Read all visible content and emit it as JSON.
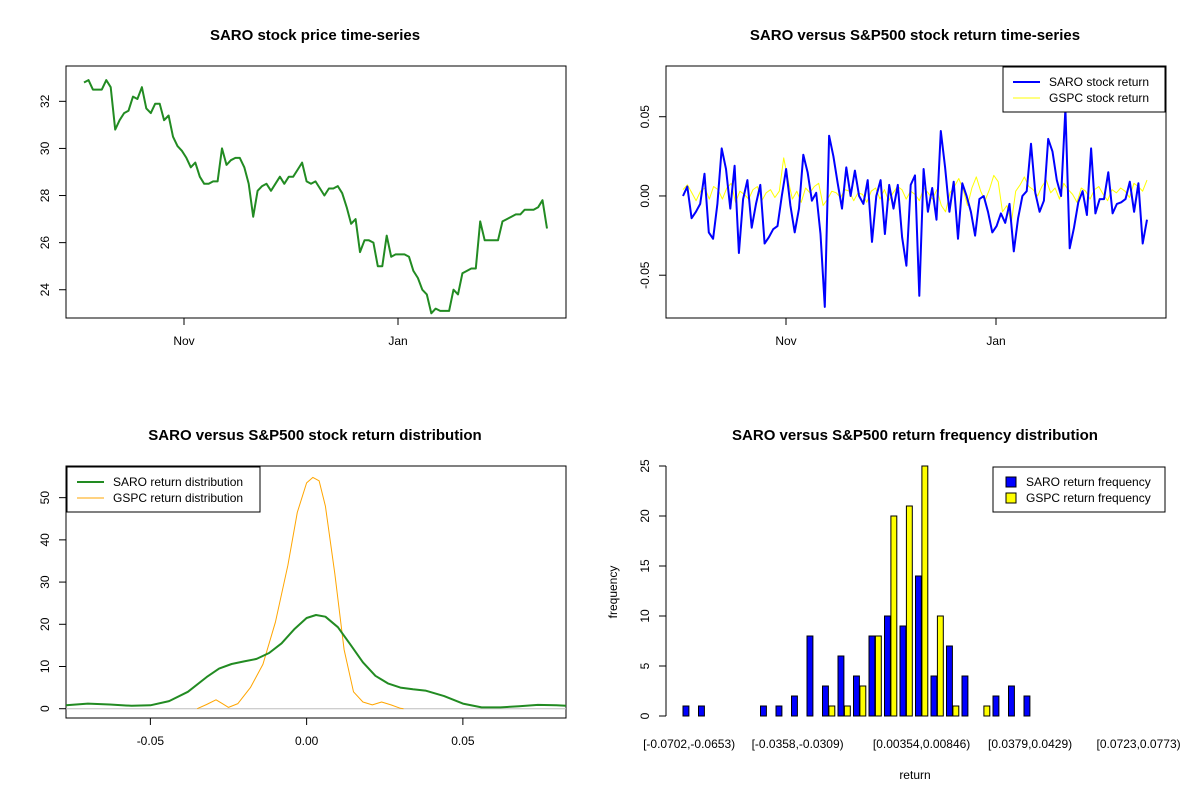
{
  "chart_data": [
    {
      "type": "line",
      "title": "SARO stock price time-series",
      "x_tick_labels": [
        "Nov",
        "Jan"
      ],
      "y_ticks": [
        24,
        26,
        28,
        30,
        32
      ],
      "ylim": [
        22.8,
        33.5
      ],
      "color": "#228B22",
      "series": [
        {
          "values": [
            32.8,
            32.9,
            32.5,
            32.5,
            32.5,
            32.9,
            32.6,
            30.8,
            31.2,
            31.5,
            31.6,
            32.2,
            32.1,
            32.6,
            31.7,
            31.5,
            31.9,
            31.9,
            31.2,
            31.4,
            30.5,
            30.1,
            29.9,
            29.6,
            29.2,
            29.4,
            28.8,
            28.5,
            28.5,
            28.6,
            28.6,
            30.0,
            29.3,
            29.5,
            29.6,
            29.6,
            29.2,
            28.5,
            27.1,
            28.2,
            28.4,
            28.5,
            28.2,
            28.5,
            28.8,
            28.5,
            28.8,
            28.8,
            29.1,
            29.4,
            28.6,
            28.5,
            28.6,
            28.3,
            28.0,
            28.3,
            28.3,
            28.4,
            28.1,
            27.5,
            26.8,
            27.0,
            25.6,
            26.1,
            26.1,
            26.0,
            25.0,
            25.0,
            26.3,
            25.4,
            25.5,
            25.5,
            25.5,
            25.4,
            24.8,
            24.5,
            24.0,
            23.8,
            23.0,
            23.2,
            23.1,
            23.1,
            23.1,
            24.0,
            23.8,
            24.7,
            24.8,
            24.9,
            24.9,
            26.9,
            26.1,
            26.1,
            26.1,
            26.1,
            26.9,
            27.0,
            27.1,
            27.2,
            27.2,
            27.4,
            27.4,
            27.4,
            27.5,
            27.8,
            26.6
          ]
        }
      ]
    },
    {
      "type": "line",
      "title": "SARO versus S&P500 stock return time-series",
      "x_tick_labels": [
        "Nov",
        "Jan"
      ],
      "y_ticks": [
        -0.05,
        0.0,
        0.05
      ],
      "y_tick_labels": [
        "-0.05",
        "0.00",
        "0.05"
      ],
      "ylim": [
        -0.077,
        0.082
      ],
      "legend_position": "top-right",
      "series": [
        {
          "name": "SARO stock return",
          "color": "#0000FF",
          "values": [
            0.0,
            0.006,
            -0.014,
            -0.01,
            -0.005,
            0.014,
            -0.023,
            -0.027,
            -0.005,
            0.03,
            0.017,
            -0.008,
            0.019,
            -0.036,
            -0.002,
            0.01,
            -0.02,
            -0.005,
            0.007,
            -0.03,
            -0.026,
            -0.021,
            -0.019,
            0.0,
            0.017,
            -0.006,
            -0.023,
            -0.008,
            0.026,
            0.015,
            -0.003,
            0.002,
            -0.024,
            -0.07,
            0.038,
            0.025,
            0.008,
            -0.008,
            0.018,
            0.0,
            0.016,
            0.0,
            -0.005,
            0.01,
            -0.029,
            0.0,
            0.01,
            -0.024,
            0.007,
            -0.008,
            0.007,
            -0.026,
            -0.044,
            0.007,
            0.013,
            -0.063,
            0.017,
            -0.01,
            0.005,
            -0.015,
            0.041,
            0.018,
            -0.01,
            0.009,
            -0.027,
            0.008,
            0.0,
            -0.01,
            -0.025,
            -0.002,
            0.0,
            -0.01,
            -0.023,
            -0.019,
            -0.011,
            -0.017,
            -0.005,
            -0.035,
            -0.014,
            0.0,
            0.003,
            0.033,
            0.002,
            -0.01,
            -0.003,
            0.036,
            0.028,
            0.01,
            0.0,
            0.055,
            -0.033,
            -0.02,
            -0.004,
            0.003,
            -0.012,
            0.03,
            -0.011,
            -0.002,
            -0.002,
            0.015,
            -0.011,
            -0.005,
            -0.004,
            -0.002,
            0.009,
            -0.01,
            0.008,
            -0.03,
            -0.015
          ]
        },
        {
          "name": "GSPC stock return",
          "color": "#FFFF00",
          "values": [
            0.004,
            0.007,
            0.002,
            -0.003,
            0.003,
            0.005,
            -0.002,
            0.006,
            0.004,
            -0.002,
            0.005,
            0.008,
            -0.004,
            0.003,
            0.001,
            -0.002,
            0.004,
            0.006,
            -0.003,
            0.002,
            0.004,
            -0.001,
            0.003,
            0.024,
            0.01,
            -0.002,
            0.003,
            -0.004,
            0.005,
            0.002,
            0.006,
            0.008,
            -0.006,
            -0.002,
            0.003,
            0.002,
            -0.001,
            0.004,
            0.003,
            -0.003,
            0.002,
            0.001,
            -0.004,
            0.003,
            0.005,
            -0.002,
            0.004,
            -0.003,
            0.002,
            0.006,
            0.004,
            -0.002,
            0.003,
            0.001,
            -0.003,
            0.005,
            0.002,
            -0.002,
            0.004,
            -0.006,
            -0.01,
            0.002,
            0.006,
            0.011,
            0.004,
            -0.006,
            0.005,
            0.012,
            0.003,
            -0.003,
            0.004,
            0.013,
            0.009,
            -0.01,
            -0.006,
            -0.017,
            0.003,
            0.007,
            0.012,
            0.006,
            0.004,
            0.0,
            0.006,
            0.01,
            0.002,
            0.005,
            -0.002,
            0.008,
            0.004,
            0.001,
            -0.004,
            0.005,
            0.003,
            -0.002,
            0.004,
            0.006,
            0.001,
            -0.003,
            0.004,
            0.002,
            0.005,
            0.003,
            -0.001,
            0.008,
            0.006,
            0.003,
            0.01
          ]
        }
      ]
    },
    {
      "type": "line",
      "title": "SARO versus S&P500 stock return distribution",
      "x_ticks": [
        -0.05,
        0.0,
        0.05
      ],
      "x_tick_labels": [
        "-0.05",
        "0.00",
        "0.05"
      ],
      "y_ticks": [
        0,
        10,
        20,
        30,
        40,
        50
      ],
      "xlim": [
        -0.077,
        0.083
      ],
      "ylim": [
        -2.2,
        57.5
      ],
      "legend_position": "top-left",
      "series": [
        {
          "name": "SARO return distribution",
          "color": "#228B22",
          "x": [
            -0.077,
            -0.07,
            -0.063,
            -0.056,
            -0.05,
            -0.044,
            -0.038,
            -0.032,
            -0.028,
            -0.024,
            -0.02,
            -0.016,
            -0.012,
            -0.008,
            -0.004,
            0.0,
            0.003,
            0.006,
            0.01,
            0.014,
            0.018,
            0.022,
            0.026,
            0.03,
            0.034,
            0.038,
            0.044,
            0.05,
            0.056,
            0.062,
            0.068,
            0.074,
            0.08,
            0.083
          ],
          "y": [
            0.8,
            1.2,
            1.0,
            0.7,
            0.8,
            1.8,
            4.0,
            7.5,
            9.5,
            10.6,
            11.2,
            11.8,
            13.2,
            15.5,
            18.8,
            21.5,
            22.2,
            21.8,
            19.3,
            15.2,
            11.0,
            7.8,
            6.0,
            5.0,
            4.6,
            4.3,
            3.0,
            1.2,
            0.3,
            0.3,
            0.6,
            0.9,
            0.8,
            0.7
          ]
        },
        {
          "name": "GSPC return distribution",
          "color": "#FFA500",
          "x": [
            -0.035,
            -0.032,
            -0.029,
            -0.027,
            -0.025,
            -0.022,
            -0.018,
            -0.014,
            -0.01,
            -0.006,
            -0.003,
            0.0,
            0.002,
            0.004,
            0.006,
            0.009,
            0.012,
            0.015,
            0.018,
            0.021,
            0.024,
            0.027,
            0.03,
            0.031
          ],
          "y": [
            0.0,
            1.0,
            2.1,
            1.2,
            0.3,
            1.2,
            5.0,
            10.5,
            20.5,
            34.0,
            46.5,
            53.5,
            54.8,
            54.0,
            48.0,
            32.0,
            14.0,
            4.0,
            1.6,
            0.9,
            1.6,
            0.9,
            0.1,
            0.0
          ]
        }
      ]
    },
    {
      "type": "bar",
      "title": "SARO versus S&P500 return frequency distribution",
      "xlabel": "return",
      "ylabel": "frequency",
      "y_ticks": [
        0,
        5,
        10,
        15,
        20,
        25
      ],
      "ylim": [
        0,
        25
      ],
      "visible_tick_labels": [
        {
          "bin": 0,
          "label": "[-0.0702,-0.0653)"
        },
        {
          "bin": 7,
          "label": "[-0.0358,-0.0309)"
        },
        {
          "bin": 15,
          "label": "[0.00354,0.00846)"
        },
        {
          "bin": 22,
          "label": "[0.0379,0.0429)"
        },
        {
          "bin": 29,
          "label": "[0.0723,0.0773)"
        }
      ],
      "legend_position": "top-right",
      "series": [
        {
          "name": "SARO return frequency",
          "color": "#0000FF",
          "values": [
            1,
            1,
            0,
            0,
            0,
            1,
            1,
            2,
            8,
            3,
            6,
            4,
            8,
            10,
            9,
            14,
            4,
            7,
            4,
            0,
            2,
            3,
            2,
            0,
            0,
            0,
            0,
            0,
            0,
            0
          ]
        },
        {
          "name": "GSPC return frequency",
          "color": "#FFFF00",
          "values": [
            0,
            0,
            0,
            0,
            0,
            0,
            0,
            0,
            0,
            1,
            1,
            3,
            8,
            20,
            21,
            25,
            10,
            1,
            0,
            1,
            0,
            0,
            0,
            0,
            0,
            0,
            0,
            0,
            0,
            0
          ]
        }
      ]
    }
  ]
}
